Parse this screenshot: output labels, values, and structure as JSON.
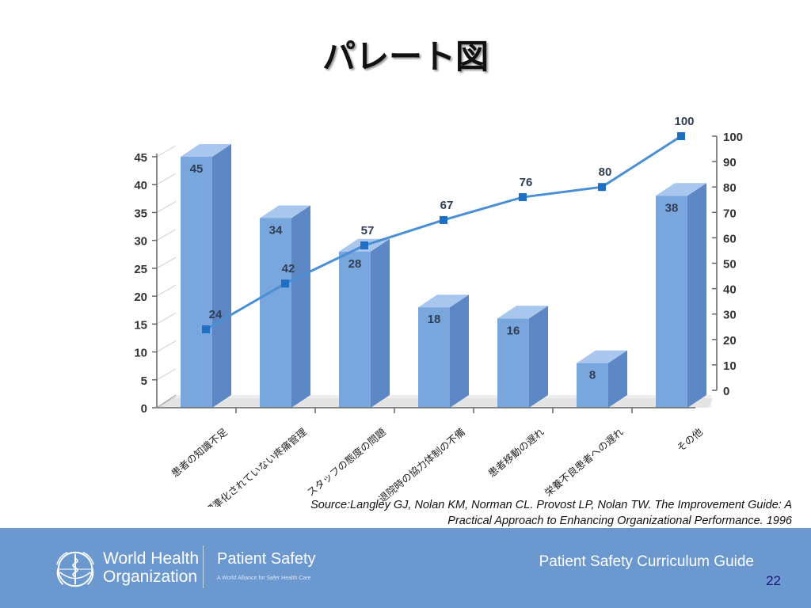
{
  "slide": {
    "title": "パレート図"
  },
  "chart_data": {
    "type": "bar",
    "title": "",
    "categories": [
      "患者の知識不足",
      "標準化されていない疼痛管理",
      "スタッフの態度の問題",
      "退院時の協力体制の不備",
      "患者移動の遅れ",
      "栄養不良患者への遅れ",
      "その他"
    ],
    "series": [
      {
        "type": "bar",
        "axis": "left",
        "values": [
          45,
          34,
          28,
          18,
          16,
          8,
          38
        ]
      },
      {
        "type": "line",
        "axis": "right",
        "values": [
          24,
          42,
          57,
          67,
          76,
          80,
          100
        ]
      }
    ],
    "y_left": {
      "min": 0,
      "max": 45,
      "ticks": [
        0,
        5,
        10,
        15,
        20,
        25,
        30,
        35,
        40,
        45
      ]
    },
    "y_right": {
      "min": 0,
      "max": 100,
      "ticks": [
        0,
        10,
        20,
        30,
        40,
        50,
        60,
        70,
        80,
        90,
        100
      ]
    },
    "colors": {
      "bar": "#7aa6de",
      "bar_side": "#5c87c4",
      "bar_top": "#a9c7ee",
      "line": "#4a8fd4",
      "marker": "#1f6fc2",
      "wall": "#eeeeee"
    }
  },
  "source": {
    "line1": "Source:Langley GJ, Nolan KM, Norman CL. Provost LP, Nolan TW. The Improvement Guide: A",
    "line2": "Practical Approach to Enhancing Organizational  Performance. 1996"
  },
  "footer": {
    "who_line1": "World Health",
    "who_line2": "Organization",
    "patient_safety": "Patient Safety",
    "patient_safety_sub": "A World Alliance for Safer Health Care",
    "guide": "Patient Safety Curriculum Guide",
    "page": "22",
    "colors": {
      "background": "#6b98cf"
    }
  }
}
